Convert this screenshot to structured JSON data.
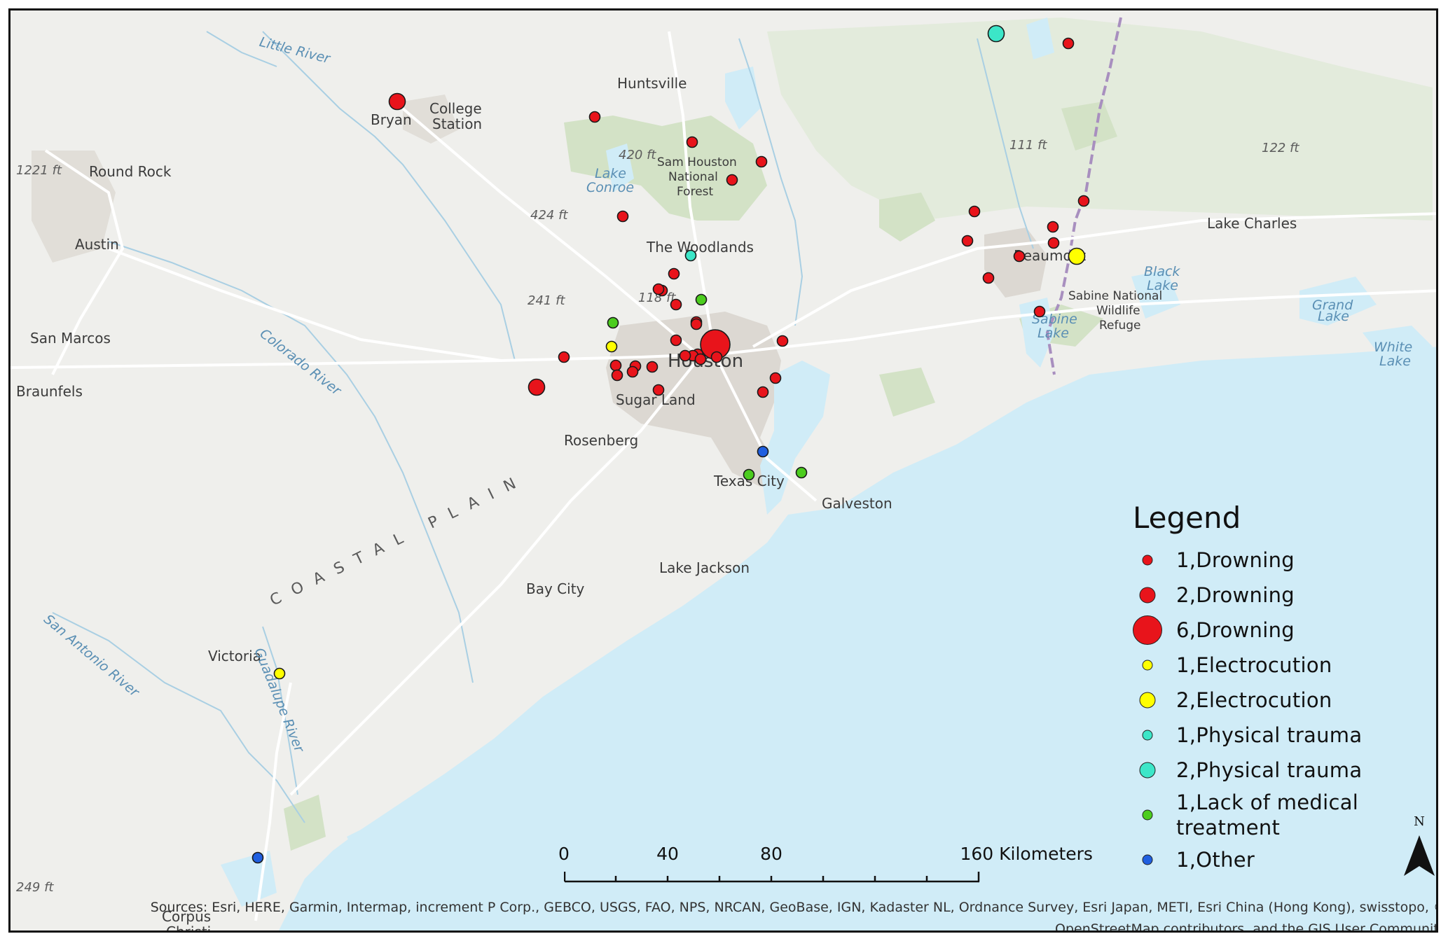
{
  "map": {
    "places": [
      {
        "text": "Huntsville"
      },
      {
        "text": "College"
      },
      {
        "text": "Station"
      },
      {
        "text": "Bryan"
      },
      {
        "text": "Round Rock"
      },
      {
        "text": "Austin"
      },
      {
        "text": "San Marcos"
      },
      {
        "text": "Braunfels"
      },
      {
        "text": "Sam Houston"
      },
      {
        "text": "National"
      },
      {
        "text": "Forest"
      },
      {
        "text": "The Woodlands"
      },
      {
        "text": "Houston"
      },
      {
        "text": "Sugar Land"
      },
      {
        "text": "Rosenberg"
      },
      {
        "text": "Texas City"
      },
      {
        "text": "Galveston"
      },
      {
        "text": "Lake Jackson"
      },
      {
        "text": "Bay City"
      },
      {
        "text": "Victoria"
      },
      {
        "text": "Corpus"
      },
      {
        "text": "Christi"
      },
      {
        "text": "Beaumont"
      },
      {
        "text": "Lake Charles"
      },
      {
        "text": "Sabine National"
      },
      {
        "text": "Wildlife"
      },
      {
        "text": "Refuge"
      }
    ],
    "water_labels": [
      {
        "text": "Little River"
      },
      {
        "text": "Lake"
      },
      {
        "text": "Conroe"
      },
      {
        "text": "Colorado River"
      },
      {
        "text": "San Antonio River"
      },
      {
        "text": "Guadalupe River"
      },
      {
        "text": "Black"
      },
      {
        "text": "Lake"
      },
      {
        "text": "Grand"
      },
      {
        "text": "Lake"
      },
      {
        "text": "White"
      },
      {
        "text": "Lake"
      },
      {
        "text": "Sabine"
      },
      {
        "text": "Lake"
      }
    ],
    "elevations": [
      {
        "text": "1221 ft"
      },
      {
        "text": "420 ft"
      },
      {
        "text": "424 ft"
      },
      {
        "text": "241 ft"
      },
      {
        "text": "118 ft"
      },
      {
        "text": "111 ft"
      },
      {
        "text": "122 ft"
      },
      {
        "text": "249 ft"
      }
    ],
    "region_label": "COASTAL PLAIN"
  },
  "incidents": [
    {
      "cause": "Drowning",
      "count": 2
    },
    {
      "cause": "Drowning",
      "count": 1
    },
    {
      "cause": "Drowning",
      "count": 1
    },
    {
      "cause": "Drowning",
      "count": 1
    },
    {
      "cause": "Drowning",
      "count": 1
    },
    {
      "cause": "Drowning",
      "count": 1
    },
    {
      "cause": "Physical trauma",
      "count": 1
    },
    {
      "cause": "Drowning",
      "count": 1
    },
    {
      "cause": "Drowning",
      "count": 1
    },
    {
      "cause": "Drowning",
      "count": 1
    },
    {
      "cause": "Lack of medical treatment",
      "count": 1
    },
    {
      "cause": "Drowning",
      "count": 1
    },
    {
      "cause": "Drowning",
      "count": 1
    },
    {
      "cause": "Lack of medical treatment",
      "count": 1
    },
    {
      "cause": "Electrocution",
      "count": 1
    },
    {
      "cause": "Drowning",
      "count": 1
    },
    {
      "cause": "Drowning",
      "count": 1
    },
    {
      "cause": "Drowning",
      "count": 1
    },
    {
      "cause": "Drowning",
      "count": 1
    },
    {
      "cause": "Drowning",
      "count": 1
    },
    {
      "cause": "Drowning",
      "count": 1
    },
    {
      "cause": "Drowning",
      "count": 6
    },
    {
      "cause": "Drowning",
      "count": 1
    },
    {
      "cause": "Drowning",
      "count": 1
    },
    {
      "cause": "Drowning",
      "count": 1
    },
    {
      "cause": "Drowning",
      "count": 2
    },
    {
      "cause": "Drowning",
      "count": 1
    },
    {
      "cause": "Drowning",
      "count": 1
    },
    {
      "cause": "Drowning",
      "count": 1
    },
    {
      "cause": "Drowning",
      "count": 1
    },
    {
      "cause": "Drowning",
      "count": 1
    },
    {
      "cause": "Drowning",
      "count": 1
    },
    {
      "cause": "Drowning",
      "count": 1
    },
    {
      "cause": "Drowning",
      "count": 1
    },
    {
      "cause": "Other",
      "count": 1
    },
    {
      "cause": "Lack of medical treatment",
      "count": 1
    },
    {
      "cause": "Lack of medical treatment",
      "count": 1
    },
    {
      "cause": "Electrocution",
      "count": 1
    },
    {
      "cause": "Other",
      "count": 1
    },
    {
      "cause": "Physical trauma",
      "count": 2
    },
    {
      "cause": "Drowning",
      "count": 1
    },
    {
      "cause": "Drowning",
      "count": 1
    },
    {
      "cause": "Drowning",
      "count": 1
    },
    {
      "cause": "Drowning",
      "count": 1
    },
    {
      "cause": "Drowning",
      "count": 1
    },
    {
      "cause": "Drowning",
      "count": 1
    },
    {
      "cause": "Drowning",
      "count": 1
    },
    {
      "cause": "Drowning",
      "count": 1
    },
    {
      "cause": "Drowning",
      "count": 1
    },
    {
      "cause": "Electrocution",
      "count": 2
    }
  ],
  "legend": {
    "title": "Legend",
    "items": [
      {
        "label": "1,Drowning",
        "color": "#e8141b",
        "count": 1
      },
      {
        "label": "2,Drowning",
        "color": "#e8141b",
        "count": 2
      },
      {
        "label": "6,Drowning",
        "color": "#e8141b",
        "count": 6
      },
      {
        "label": "1,Electrocution",
        "color": "#ffff00",
        "count": 1
      },
      {
        "label": "2,Electrocution",
        "color": "#ffff00",
        "count": 2
      },
      {
        "label": "1,Physical trauma",
        "color": "#3ce6c8",
        "count": 1
      },
      {
        "label": "2,Physical trauma",
        "color": "#3ce6c8",
        "count": 2
      },
      {
        "label": "1,Lack of medical treatment",
        "label_line1": "1,Lack of medical",
        "label_line2": "treatment",
        "color": "#4ccd1e",
        "count": 1
      },
      {
        "label": "1,Other",
        "color": "#1f5fe0",
        "count": 1
      }
    ]
  },
  "scale": {
    "ticks": [
      "0",
      "40",
      "80",
      "160 Kilometers"
    ]
  },
  "north": "N",
  "attribution": {
    "line1": "Sources: Esri, HERE, Garmin, Intermap, increment P Corp., GEBCO, USGS, FAO, NPS, NRCAN, GeoBase, IGN, Kadaster NL, Ordnance Survey, Esri Japan, METI, Esri China (Hong Kong), swisstopo, ©",
    "line2": "OpenStreetMap contributors, and the GIS User Community"
  }
}
